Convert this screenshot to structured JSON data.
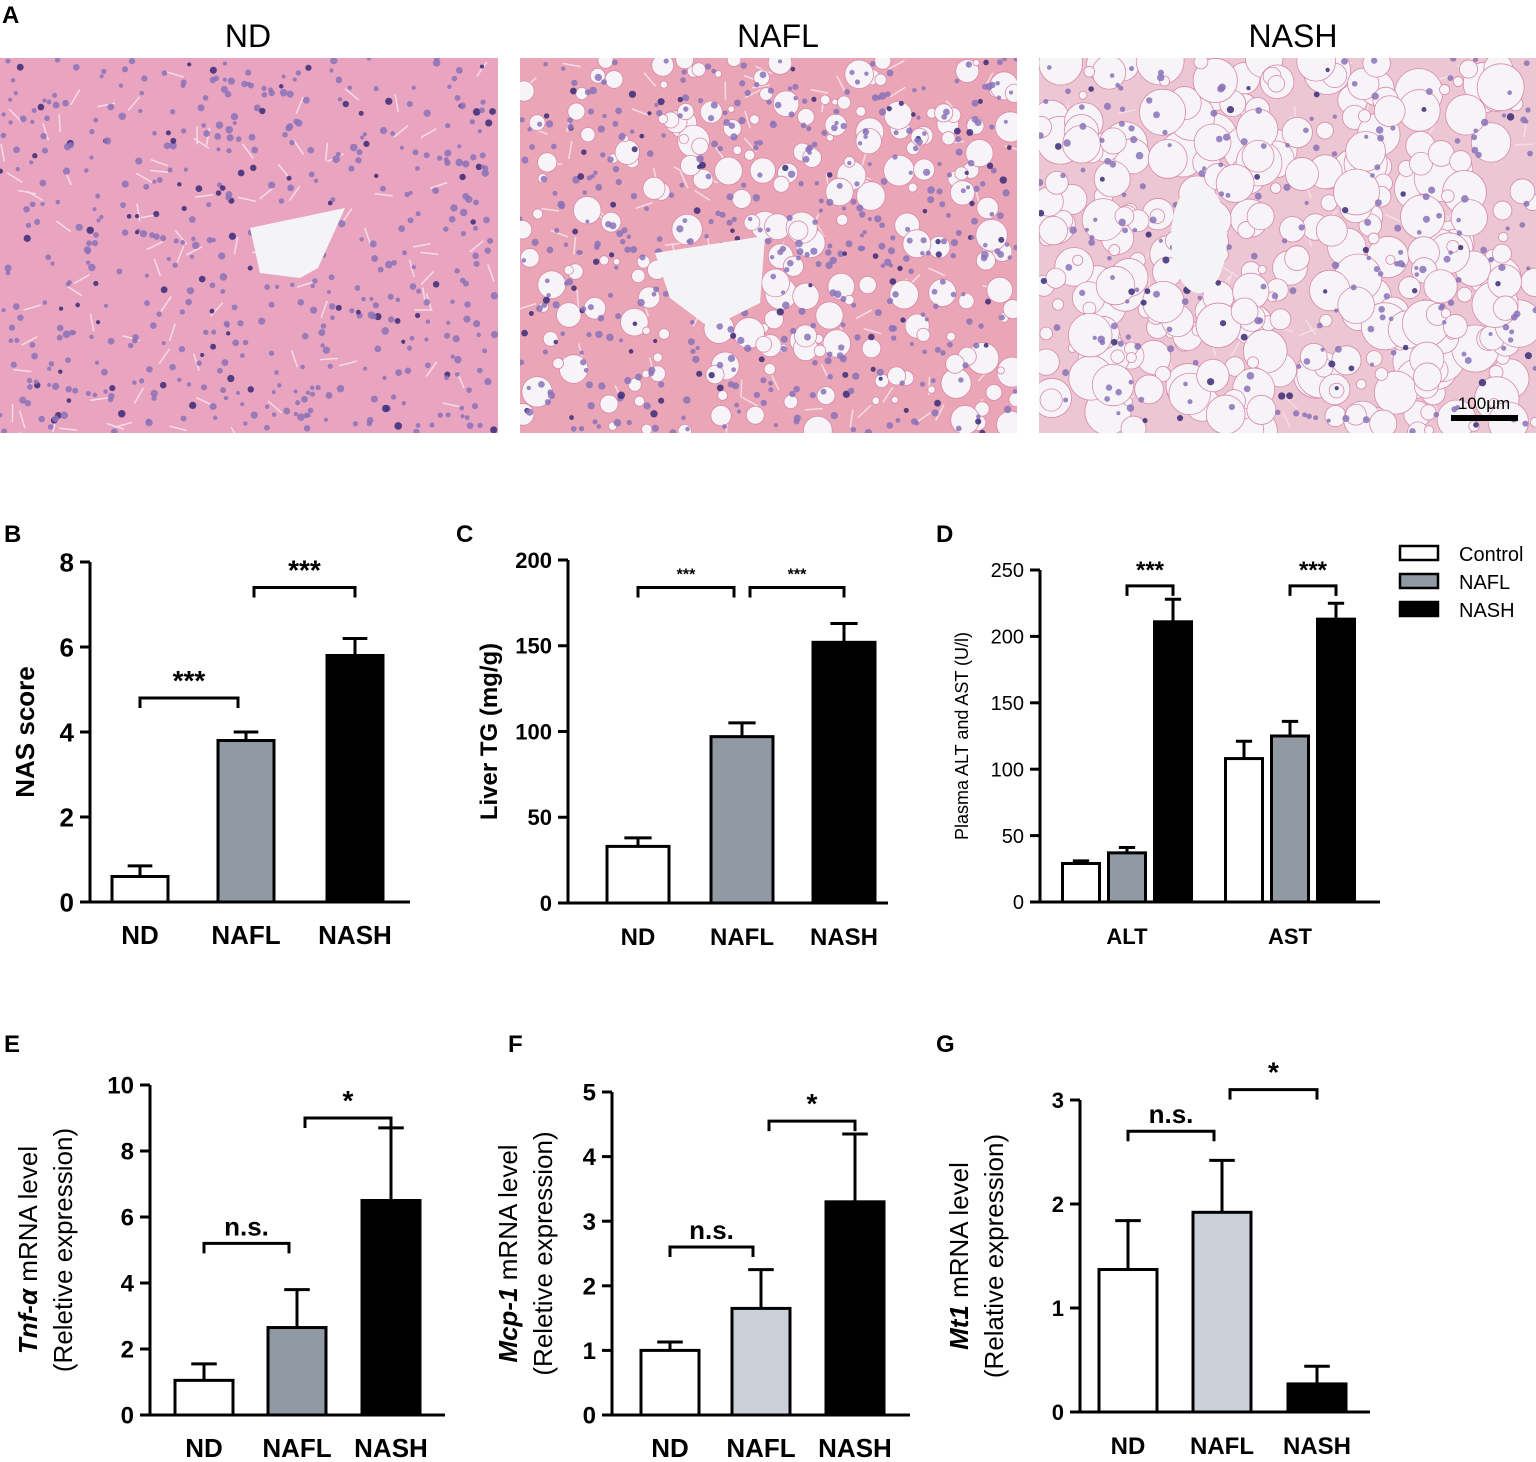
{
  "panel_a": {
    "letter": "A",
    "images": [
      {
        "title": "ND",
        "fat": 0,
        "background": "#e9a4bf"
      },
      {
        "title": "NAFL",
        "fat": 1,
        "background": "#eaa6b6"
      },
      {
        "title": "NASH",
        "fat": 2,
        "background": "#ecc6d2"
      }
    ],
    "scale_bar": "100μm"
  },
  "colors": {
    "white": "#ffffff",
    "gray": "#9199a2",
    "light_gray": "#ccd0d9",
    "black": "#000000"
  },
  "chart_data": [
    {
      "panel": "B",
      "type": "bar",
      "categories": [
        "ND",
        "NAFL",
        "NASH"
      ],
      "values": [
        0.6,
        3.8,
        5.8
      ],
      "errors": [
        0.25,
        0.2,
        0.4
      ],
      "fills": [
        "white",
        "gray",
        "black"
      ],
      "ylabel": "NAS score",
      "ylim": [
        0,
        8
      ],
      "yticks": [
        0,
        2,
        4,
        6,
        8
      ],
      "significance": [
        {
          "from": 0,
          "to": 1,
          "label": "***",
          "level": 4.8
        },
        {
          "from": 1,
          "to": 2,
          "label": "***",
          "level": 7.4
        }
      ]
    },
    {
      "panel": "C",
      "type": "bar",
      "categories": [
        "ND",
        "NAFL",
        "NASH"
      ],
      "values": [
        33,
        97,
        152
      ],
      "errors": [
        5,
        8,
        11
      ],
      "fills": [
        "white",
        "gray",
        "black"
      ],
      "ylabel": "Liver TG (mg/g)",
      "ylim": [
        0,
        200
      ],
      "yticks": [
        0,
        50,
        100,
        150,
        200
      ],
      "significance": [
        {
          "from": 0,
          "to": 1,
          "label": "***",
          "level": 184
        },
        {
          "from": 1,
          "to": 2,
          "label": "***",
          "level": 184
        }
      ]
    },
    {
      "panel": "D",
      "type": "bar",
      "categories": [
        "ALT",
        "AST"
      ],
      "series": [
        {
          "name": "Control",
          "fill": "white",
          "values": [
            29,
            108
          ],
          "errors": [
            2,
            13
          ]
        },
        {
          "name": "NAFL",
          "fill": "gray",
          "values": [
            37,
            125
          ],
          "errors": [
            4,
            11
          ]
        },
        {
          "name": "NASH",
          "fill": "black",
          "values": [
            211,
            213
          ],
          "errors": [
            17,
            12
          ]
        }
      ],
      "ylabel": "Plasma ALT and AST (U/l)",
      "ylim": [
        0,
        250
      ],
      "yticks": [
        0,
        50,
        100,
        150,
        200,
        250
      ],
      "legend_position": "top-right",
      "significance": [
        {
          "group": 0,
          "from": 1,
          "to": 2,
          "label": "***",
          "level": 238
        },
        {
          "group": 1,
          "from": 1,
          "to": 2,
          "label": "***",
          "level": 238
        }
      ]
    },
    {
      "panel": "E",
      "type": "bar",
      "categories": [
        "ND",
        "NAFL",
        "NASH"
      ],
      "values": [
        1.05,
        2.65,
        6.5
      ],
      "errors": [
        0.5,
        1.15,
        2.2
      ],
      "fills": [
        "white",
        "gray",
        "black"
      ],
      "ylabel_italic": "Tnf-α",
      "ylabel_rest": " mRNA level",
      "ylabel_line2": "(Reletive expression)",
      "ylim": [
        0,
        10
      ],
      "yticks": [
        0,
        2,
        4,
        6,
        8,
        10
      ],
      "significance": [
        {
          "from": 0,
          "to": 1,
          "label": "n.s.",
          "level": 5.2
        },
        {
          "from": 1,
          "to": 2,
          "label": "*",
          "level": 9.0
        }
      ]
    },
    {
      "panel": "F",
      "type": "bar",
      "categories": [
        "ND",
        "NAFL",
        "NASH"
      ],
      "values": [
        1.0,
        1.65,
        3.3
      ],
      "errors": [
        0.13,
        0.6,
        1.05
      ],
      "fills": [
        "white",
        "light_gray",
        "black"
      ],
      "ylabel_italic": "Mcp-1",
      "ylabel_rest": " mRNA level",
      "ylabel_line2": "(Reletive expression)",
      "ylim": [
        0,
        5
      ],
      "yticks": [
        0,
        1,
        2,
        3,
        4,
        5
      ],
      "significance": [
        {
          "from": 0,
          "to": 1,
          "label": "n.s.",
          "level": 2.6
        },
        {
          "from": 1,
          "to": 2,
          "label": "*",
          "level": 4.55
        }
      ]
    },
    {
      "panel": "G",
      "type": "bar",
      "categories": [
        "ND",
        "NAFL",
        "NASH"
      ],
      "values": [
        1.37,
        1.92,
        0.27
      ],
      "errors": [
        0.47,
        0.5,
        0.17
      ],
      "fills": [
        "white",
        "light_gray",
        "black"
      ],
      "ylabel_italic": "Mt1",
      "ylabel_rest": " mRNA level",
      "ylabel_line2": "(Relative expression)",
      "ylim": [
        0,
        3
      ],
      "yticks": [
        0,
        1,
        2,
        3
      ],
      "significance": [
        {
          "from": 0,
          "to": 1,
          "label": "n.s.",
          "level": 2.7
        },
        {
          "from": 1,
          "to": 2,
          "label": "*",
          "level": 3.1
        }
      ]
    }
  ]
}
